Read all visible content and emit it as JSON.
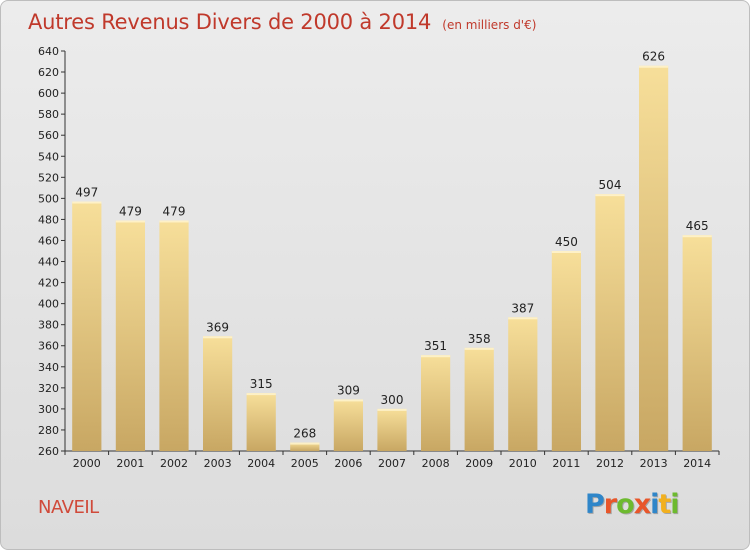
{
  "chart_data": {
    "type": "bar",
    "title": "Autres Revenus Divers de 2000 à 2014",
    "subtitle": "(en milliers d'€)",
    "categories": [
      "2000",
      "2001",
      "2002",
      "2003",
      "2004",
      "2005",
      "2006",
      "2007",
      "2008",
      "2009",
      "2010",
      "2011",
      "2012",
      "2013",
      "2014"
    ],
    "values": [
      497,
      479,
      479,
      369,
      315,
      268,
      309,
      300,
      351,
      358,
      387,
      450,
      504,
      626,
      465
    ],
    "ylim": [
      260,
      640
    ],
    "ytick_step": 20,
    "grid": false,
    "bar_color": "#e6c67a"
  },
  "place_name": "NAVEIL",
  "logo": {
    "text": "Proxiti",
    "letter_colors": [
      "#2f86c9",
      "#e8562a",
      "#6dba2f",
      "#e8562a",
      "#2f86c9",
      "#f2b01e",
      "#6dba2f"
    ]
  }
}
